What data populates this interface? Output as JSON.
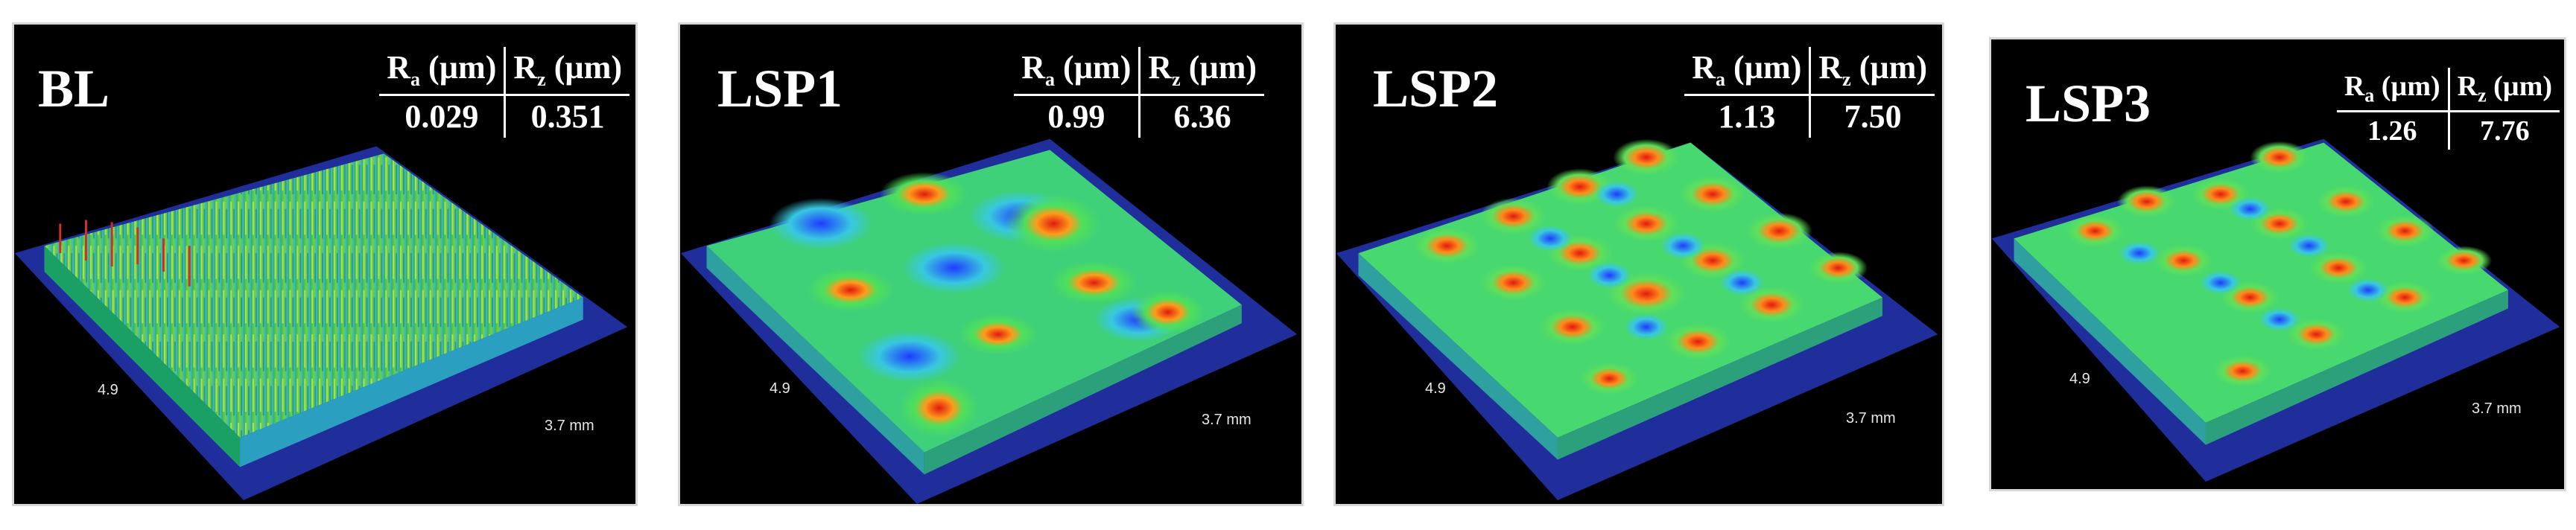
{
  "panels": [
    {
      "label": "BL",
      "ra_head": "R",
      "ra_sub": "a",
      "ra_unit": " (µm)",
      "rz_head": "R",
      "rz_sub": "z",
      "rz_unit": " (µm)",
      "ra": "0.029",
      "rz": "0.351",
      "tick_left": "4.9",
      "tick_right": "3.7 mm"
    },
    {
      "label": "LSP1",
      "ra_head": "R",
      "ra_sub": "a",
      "ra_unit": " (µm)",
      "rz_head": "R",
      "rz_sub": "z",
      "rz_unit": " (µm)",
      "ra": "0.99",
      "rz": "6.36",
      "tick_left": "4.9",
      "tick_right": "3.7 mm"
    },
    {
      "label": "LSP2",
      "ra_head": "R",
      "ra_sub": "a",
      "ra_unit": " (µm)",
      "rz_head": "R",
      "rz_sub": "z",
      "rz_unit": " (µm)",
      "ra": "1.13",
      "rz": "7.50",
      "tick_left": "4.9",
      "tick_right": "3.7 mm"
    },
    {
      "label": "LSP3",
      "ra_head": "R",
      "ra_sub": "a",
      "ra_unit": " (µm)",
      "rz_head": "R",
      "rz_sub": "z",
      "rz_unit": " (µm)",
      "ra": "1.26",
      "rz": "7.76",
      "tick_left": "4.9",
      "tick_right": "3.7 mm"
    }
  ],
  "colors": {
    "base_plane": "#1f2e9a",
    "low": "#1e3cff",
    "mid": "#38d86a",
    "high": "#e01a10",
    "background": "#000000"
  }
}
